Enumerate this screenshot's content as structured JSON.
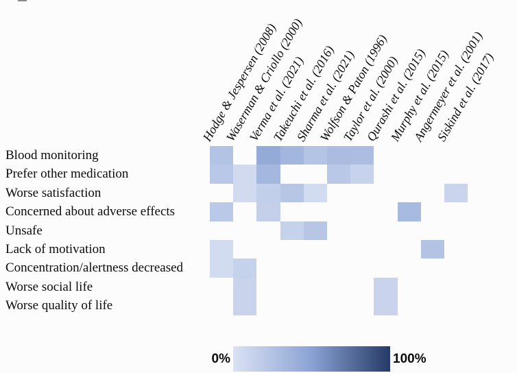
{
  "figure": {
    "background": "#fcfcfc"
  },
  "chart_data": {
    "type": "heatmap",
    "title": "",
    "columns": [
      "Hodge & Jespersen (2008)",
      "Waserman & Criollo (2000)",
      "Verma et al. (2021)",
      "Takeuchi et al. (2016)",
      "Sharma et al. (2021)",
      "Wolfson & Paton (1996)",
      "Taylor et al. (2000)",
      "Qurashi et al. (2015)",
      "Murphy et al. (2015)",
      "Angermeyer et al. (2001)",
      "Siskind et al. (2017)"
    ],
    "rows": [
      "Blood monitoring",
      "Prefer other medication",
      "Worse satisfaction",
      "Concerned about adverse effects",
      "Unsafe",
      "Lack of motivation",
      "Concentration/alertness decreased",
      "Worse social life",
      "Worse quality of life"
    ],
    "values_percent": [
      [
        25,
        null,
        44,
        35,
        24,
        30,
        29,
        null,
        null,
        null,
        null
      ],
      [
        21,
        6,
        34,
        null,
        null,
        21,
        12,
        null,
        null,
        null,
        null
      ],
      [
        null,
        6,
        15,
        22,
        5,
        null,
        null,
        null,
        null,
        null,
        10
      ],
      [
        20,
        null,
        14,
        null,
        null,
        null,
        null,
        null,
        32,
        null,
        null
      ],
      [
        null,
        null,
        null,
        13,
        22,
        null,
        null,
        null,
        null,
        null,
        null
      ],
      [
        5,
        null,
        null,
        null,
        null,
        null,
        null,
        null,
        null,
        25,
        null
      ],
      [
        5,
        13,
        null,
        null,
        null,
        null,
        null,
        null,
        null,
        null,
        null
      ],
      [
        null,
        11,
        null,
        null,
        null,
        null,
        null,
        11,
        null,
        null,
        null
      ],
      [
        null,
        11,
        null,
        null,
        null,
        null,
        null,
        11,
        null,
        null,
        null
      ]
    ],
    "value_range": [
      0,
      100
    ],
    "colormap": [
      {
        "pos": 0.0,
        "color": "#dae2f3"
      },
      {
        "pos": 0.5,
        "color": "#8ba3d4"
      },
      {
        "pos": 1.0,
        "color": "#253a66"
      }
    ],
    "legend": {
      "min_label": "0%",
      "max_label": "100%",
      "position": "bottom-center"
    },
    "grid_visible": false
  }
}
